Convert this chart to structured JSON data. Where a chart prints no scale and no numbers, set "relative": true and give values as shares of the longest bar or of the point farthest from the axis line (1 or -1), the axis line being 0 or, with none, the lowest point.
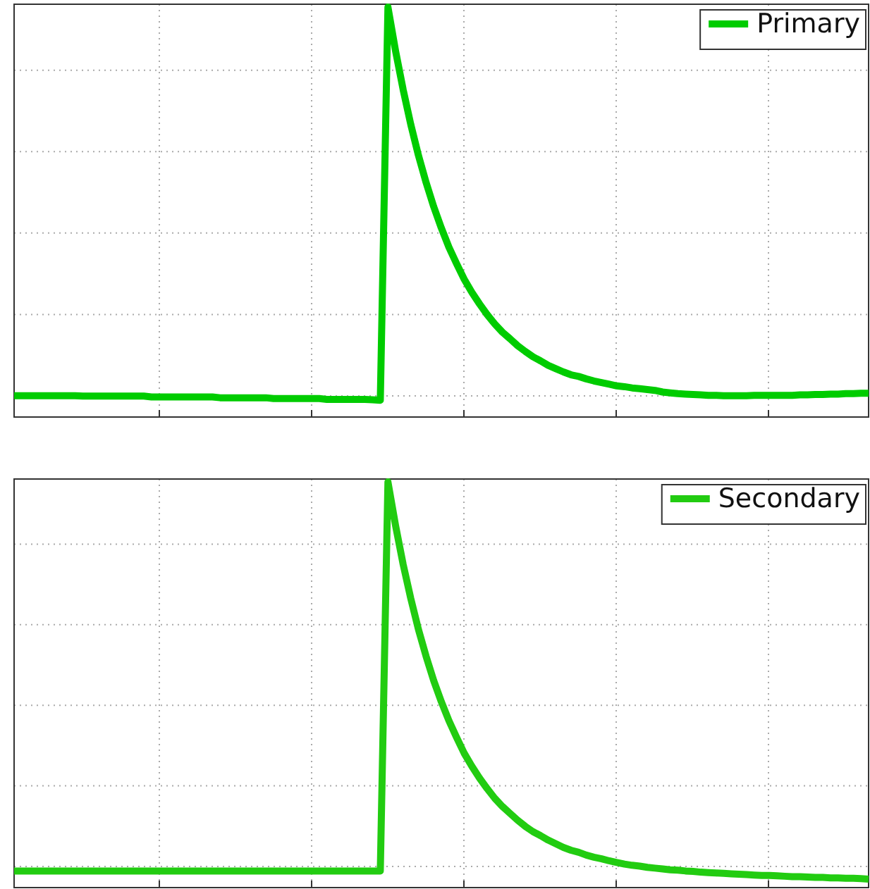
{
  "chart_data": [
    {
      "type": "line",
      "relative": true,
      "grid": true,
      "legend": "top right",
      "categories": [
        null,
        null,
        null,
        null,
        null,
        null,
        null,
        null,
        null,
        null,
        null,
        null,
        null,
        null,
        null,
        null,
        null,
        null,
        null,
        null,
        null,
        null,
        null,
        null,
        null,
        null,
        null,
        null,
        null,
        null,
        null,
        null,
        null,
        null,
        null,
        null,
        null,
        null,
        null,
        null,
        null,
        null,
        null,
        null,
        null,
        null,
        null,
        null,
        null,
        null,
        null,
        null,
        null,
        null,
        null,
        null,
        null,
        null,
        null,
        null,
        null,
        null,
        null,
        null,
        null,
        null,
        null,
        null,
        null,
        null,
        null,
        null,
        null,
        null,
        null,
        null,
        null,
        null,
        null,
        null,
        null,
        null,
        null,
        null,
        null,
        null,
        null,
        null,
        null,
        null,
        null,
        null,
        null,
        null,
        null,
        null,
        null,
        null,
        null,
        null,
        null,
        null,
        null,
        null,
        null,
        null,
        null,
        null,
        null,
        null,
        null,
        null,
        null
      ],
      "series": [
        {
          "name": "Primary",
          "color": "#00cc00",
          "values": [
            0.052,
            0.052,
            0.052,
            0.052,
            0.052,
            0.052,
            0.052,
            0.052,
            0.052,
            0.051,
            0.051,
            0.051,
            0.051,
            0.051,
            0.051,
            0.051,
            0.051,
            0.051,
            0.049,
            0.049,
            0.049,
            0.049,
            0.049,
            0.049,
            0.049,
            0.049,
            0.049,
            0.047,
            0.047,
            0.047,
            0.047,
            0.047,
            0.047,
            0.047,
            0.045,
            0.045,
            0.045,
            0.045,
            0.045,
            0.045,
            0.045,
            0.043,
            0.043,
            0.043,
            0.043,
            0.043,
            0.043,
            0.042,
            0.041,
            1,
            0.893,
            0.798,
            0.713,
            0.638,
            0.572,
            0.513,
            0.461,
            0.414,
            0.374,
            0.336,
            0.304,
            0.276,
            0.25,
            0.227,
            0.207,
            0.191,
            0.174,
            0.16,
            0.147,
            0.137,
            0.126,
            0.118,
            0.11,
            0.103,
            0.099,
            0.093,
            0.088,
            0.084,
            0.08,
            0.076,
            0.074,
            0.071,
            0.069,
            0.067,
            0.065,
            0.061,
            0.059,
            0.057,
            0.056,
            0.055,
            0.054,
            0.053,
            0.053,
            0.052,
            0.052,
            0.052,
            0.052,
            0.053,
            0.053,
            0.053,
            0.053,
            0.053,
            0.053,
            0.054,
            0.054,
            0.055,
            0.055,
            0.056,
            0.056,
            0.057,
            0.057,
            0.058,
            0.058
          ]
        }
      ]
    },
    {
      "type": "line",
      "relative": true,
      "grid": true,
      "legend": "top right",
      "categories": [
        null,
        null,
        null,
        null,
        null,
        null,
        null,
        null,
        null,
        null,
        null,
        null,
        null,
        null,
        null,
        null,
        null,
        null,
        null,
        null,
        null,
        null,
        null,
        null,
        null,
        null,
        null,
        null,
        null,
        null,
        null,
        null,
        null,
        null,
        null,
        null,
        null,
        null,
        null,
        null,
        null,
        null,
        null,
        null,
        null,
        null,
        null,
        null,
        null,
        null,
        null,
        null,
        null,
        null,
        null,
        null,
        null,
        null,
        null,
        null,
        null,
        null,
        null,
        null,
        null,
        null,
        null,
        null,
        null,
        null,
        null,
        null,
        null,
        null,
        null,
        null,
        null,
        null,
        null,
        null,
        null,
        null,
        null,
        null,
        null,
        null,
        null,
        null,
        null,
        null,
        null,
        null,
        null,
        null,
        null,
        null,
        null,
        null,
        null,
        null,
        null,
        null,
        null,
        null,
        null,
        null,
        null,
        null,
        null,
        null,
        null,
        null,
        null
      ],
      "series": [
        {
          "name": "Secondary",
          "color": "#22cc11",
          "values": [
            0.041,
            0.041,
            0.041,
            0.041,
            0.041,
            0.041,
            0.041,
            0.041,
            0.041,
            0.041,
            0.041,
            0.041,
            0.041,
            0.041,
            0.041,
            0.041,
            0.041,
            0.041,
            0.041,
            0.041,
            0.041,
            0.041,
            0.041,
            0.041,
            0.041,
            0.041,
            0.041,
            0.041,
            0.041,
            0.041,
            0.041,
            0.041,
            0.041,
            0.041,
            0.041,
            0.041,
            0.041,
            0.041,
            0.041,
            0.041,
            0.041,
            0.041,
            0.041,
            0.041,
            0.041,
            0.041,
            0.041,
            0.041,
            0.041,
            1,
            0.892,
            0.796,
            0.712,
            0.636,
            0.57,
            0.51,
            0.458,
            0.411,
            0.37,
            0.331,
            0.299,
            0.27,
            0.244,
            0.22,
            0.2,
            0.183,
            0.166,
            0.151,
            0.138,
            0.128,
            0.117,
            0.108,
            0.099,
            0.092,
            0.087,
            0.08,
            0.075,
            0.071,
            0.066,
            0.062,
            0.058,
            0.055,
            0.053,
            0.05,
            0.048,
            0.046,
            0.044,
            0.043,
            0.041,
            0.04,
            0.038,
            0.037,
            0.036,
            0.035,
            0.034,
            0.033,
            0.032,
            0.031,
            0.03,
            0.03,
            0.029,
            0.028,
            0.027,
            0.027,
            0.026,
            0.025,
            0.025,
            0.024,
            0.024,
            0.023,
            0.023,
            0.022,
            0.021
          ]
        }
      ]
    }
  ]
}
